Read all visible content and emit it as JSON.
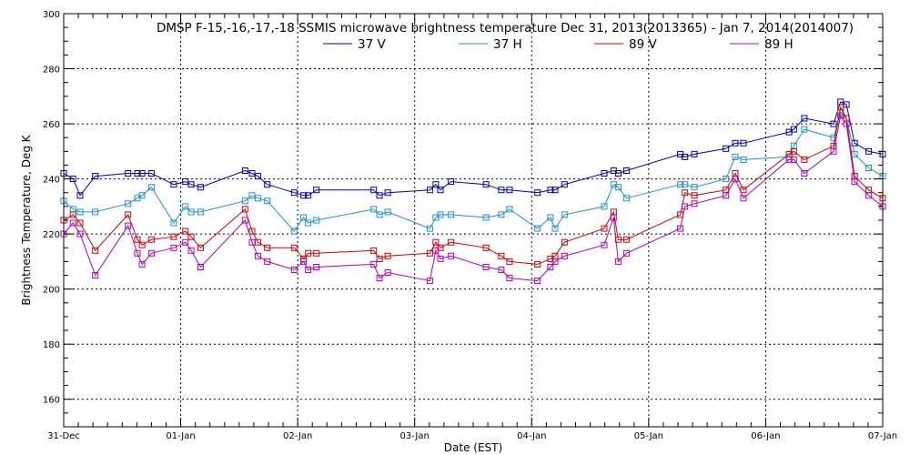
{
  "chart_data": {
    "type": "line",
    "title": "DMSP F-15,-16,-17,-18 SSMIS microwave brightness temperature Dec 31, 2013(2013365) - Jan  7, 2014(2014007)",
    "xlabel": "Date (EST)",
    "ylabel": "Brightness Temperature, Deg K",
    "xlim": [
      0,
      7
    ],
    "ylim": [
      150,
      300
    ],
    "x_ticks": [
      "31-Dec",
      "01-Jan",
      "02-Jan",
      "03-Jan",
      "04-Jan",
      "05-Jan",
      "06-Jan",
      "07-Jan"
    ],
    "y_ticks": [
      160,
      180,
      200,
      220,
      240,
      260,
      280,
      300
    ],
    "grid": true,
    "legend_position": "top-center",
    "series": [
      {
        "name": "37 V",
        "color": "#0000aa",
        "x": [
          0,
          0.08,
          0.14,
          0.27,
          0.55,
          0.63,
          0.67,
          0.75,
          0.94,
          1.04,
          1.09,
          1.17,
          1.55,
          1.61,
          1.66,
          1.74,
          1.97,
          2.05,
          2.09,
          2.16,
          2.65,
          2.7,
          2.77,
          3.13,
          3.18,
          3.22,
          3.31,
          3.61,
          3.74,
          3.81,
          4.05,
          4.16,
          4.2,
          4.28,
          4.62,
          4.7,
          4.74,
          4.81,
          5.27,
          5.31,
          5.39,
          5.66,
          5.74,
          5.81,
          6.2,
          6.24,
          6.33,
          6.58,
          6.64,
          6.69,
          6.76,
          6.88,
          7.0
        ],
        "values": [
          242,
          240,
          234,
          241,
          242,
          242,
          242,
          242,
          238,
          239,
          238,
          237,
          243,
          242,
          241,
          238,
          235,
          234,
          234,
          236,
          236,
          234,
          235,
          236,
          238,
          236,
          239,
          238,
          236,
          236,
          235,
          236,
          236,
          238,
          242,
          243,
          242,
          243,
          249,
          248,
          249,
          251,
          253,
          253,
          257,
          258,
          262,
          260,
          268,
          267,
          253,
          250,
          249
        ]
      },
      {
        "name": "37 H",
        "color": "#1e90c8",
        "x": [
          0,
          0.08,
          0.14,
          0.27,
          0.55,
          0.63,
          0.67,
          0.75,
          0.94,
          1.04,
          1.09,
          1.17,
          1.55,
          1.61,
          1.66,
          1.74,
          1.97,
          2.05,
          2.09,
          2.16,
          2.65,
          2.7,
          2.77,
          3.13,
          3.18,
          3.22,
          3.31,
          3.61,
          3.74,
          3.81,
          4.05,
          4.16,
          4.2,
          4.28,
          4.62,
          4.7,
          4.74,
          4.81,
          5.27,
          5.31,
          5.39,
          5.66,
          5.74,
          5.81,
          6.2,
          6.24,
          6.33,
          6.58,
          6.64,
          6.69,
          6.76,
          6.88,
          7.0
        ],
        "values": [
          232,
          229,
          228,
          228,
          231,
          233,
          234,
          237,
          224,
          230,
          228,
          228,
          232,
          234,
          233,
          232,
          221,
          226,
          224,
          225,
          229,
          227,
          228,
          222,
          226,
          227,
          227,
          226,
          227,
          229,
          222,
          226,
          222,
          227,
          230,
          238,
          237,
          233,
          238,
          238,
          237,
          240,
          248,
          247,
          248,
          252,
          258,
          255,
          264,
          262,
          249,
          244,
          241
        ]
      },
      {
        "name": "89 V",
        "color": "#cc0000",
        "x": [
          0,
          0.08,
          0.14,
          0.27,
          0.55,
          0.63,
          0.67,
          0.75,
          0.94,
          1.04,
          1.09,
          1.17,
          1.55,
          1.61,
          1.66,
          1.74,
          1.97,
          2.05,
          2.09,
          2.16,
          2.65,
          2.7,
          2.77,
          3.13,
          3.18,
          3.22,
          3.31,
          3.61,
          3.74,
          3.81,
          4.05,
          4.16,
          4.2,
          4.28,
          4.62,
          4.7,
          4.74,
          4.81,
          5.27,
          5.31,
          5.39,
          5.66,
          5.74,
          5.81,
          6.2,
          6.24,
          6.33,
          6.58,
          6.64,
          6.69,
          6.76,
          6.88,
          7.0
        ],
        "values": [
          225,
          227,
          224,
          214,
          227,
          218,
          216,
          218,
          219,
          221,
          219,
          215,
          229,
          221,
          217,
          215,
          215,
          211,
          213,
          213,
          214,
          211,
          212,
          213,
          217,
          215,
          217,
          215,
          212,
          210,
          209,
          211,
          212,
          217,
          222,
          228,
          218,
          218,
          227,
          235,
          234,
          236,
          242,
          236,
          249,
          250,
          247,
          252,
          266,
          262,
          241,
          236,
          233
        ]
      },
      {
        "name": "89 H",
        "color": "#b000b0",
        "x": [
          0,
          0.08,
          0.14,
          0.27,
          0.55,
          0.63,
          0.67,
          0.75,
          0.94,
          1.04,
          1.09,
          1.17,
          1.55,
          1.61,
          1.66,
          1.74,
          1.97,
          2.05,
          2.09,
          2.16,
          2.65,
          2.7,
          2.77,
          3.13,
          3.18,
          3.22,
          3.31,
          3.61,
          3.74,
          3.81,
          4.05,
          4.16,
          4.2,
          4.28,
          4.62,
          4.7,
          4.74,
          4.81,
          5.27,
          5.31,
          5.39,
          5.66,
          5.74,
          5.81,
          6.2,
          6.24,
          6.33,
          6.58,
          6.64,
          6.69,
          6.76,
          6.88,
          7.0
        ],
        "values": [
          220,
          224,
          220,
          205,
          223,
          213,
          209,
          213,
          215,
          217,
          214,
          208,
          225,
          217,
          212,
          210,
          207,
          210,
          207,
          208,
          209,
          204,
          206,
          203,
          214,
          211,
          212,
          208,
          207,
          204,
          203,
          208,
          210,
          212,
          216,
          226,
          210,
          213,
          222,
          230,
          231,
          234,
          240,
          233,
          247,
          247,
          242,
          250,
          263,
          260,
          239,
          234,
          230
        ]
      }
    ]
  }
}
